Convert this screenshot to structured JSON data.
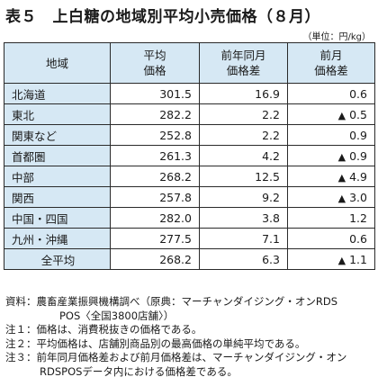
{
  "title": "表５　上白糖の地域別平均小売価格（８月）",
  "unit": "（単位：円/kg）",
  "table": {
    "headers": {
      "region": "地域",
      "avg_l1": "平均",
      "avg_l2": "価格",
      "yoy_l1": "前年同月",
      "yoy_l2": "価格差",
      "mom_l1": "前月",
      "mom_l2": "価格差"
    },
    "rows": [
      {
        "region": "北海道",
        "avg": "301.5",
        "yoy": "16.9",
        "mom_tri": "",
        "mom": "0.6"
      },
      {
        "region": "東北",
        "avg": "282.2",
        "yoy": "2.2",
        "mom_tri": "▲",
        "mom": "0.5"
      },
      {
        "region": "関東など",
        "avg": "252.8",
        "yoy": "2.2",
        "mom_tri": "",
        "mom": "0.9"
      },
      {
        "region": "首都圏",
        "avg": "261.3",
        "yoy": "4.2",
        "mom_tri": "▲",
        "mom": "0.9"
      },
      {
        "region": "中部",
        "avg": "268.2",
        "yoy": "12.5",
        "mom_tri": "▲",
        "mom": "4.9"
      },
      {
        "region": "関西",
        "avg": "257.8",
        "yoy": "9.2",
        "mom_tri": "▲",
        "mom": "3.0"
      },
      {
        "region": "中国・四国",
        "avg": "282.0",
        "yoy": "3.8",
        "mom_tri": "",
        "mom": "1.2"
      },
      {
        "region": "九州・沖縄",
        "avg": "277.5",
        "yoy": "7.1",
        "mom_tri": "",
        "mom": "0.6"
      }
    ],
    "total": {
      "region": "全平均",
      "avg": "268.2",
      "yoy": "6.3",
      "mom_tri": "▲",
      "mom": "1.1"
    }
  },
  "notes": {
    "source_key": "資料：",
    "source_l1": "農畜産業振興機構調べ（原典：マーチャンダイジング・オンRDS",
    "source_l2": "POS〈全国3800店舗〉）",
    "n1_key": "注１：",
    "n1": "価格は、消費税抜きの価格である。",
    "n2_key": "注２：",
    "n2": "平均価格は、店舗別商品別の最高価格の単純平均である。",
    "n3_key": "注３：",
    "n3_l1": "前年同月価格差および前月価格差は、マーチャンダイジング・オン",
    "n3_l2": "RDSPOSデータ内における価格差である。"
  },
  "colors": {
    "header_bg": "#d6e8f4",
    "border": "#2a2a2a"
  }
}
